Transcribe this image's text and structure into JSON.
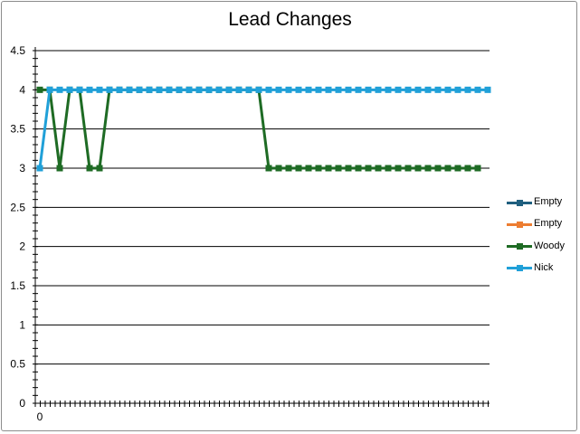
{
  "chart_data": {
    "type": "line",
    "title": "Lead Changes",
    "xlabel": "",
    "ylabel": "",
    "ylim": [
      0,
      4.5
    ],
    "yticks": [
      "0",
      "0.5",
      "1",
      "1.5",
      "2",
      "2.5",
      "3",
      "3.5",
      "4",
      "4.5"
    ],
    "x_tick_labels": [
      "0"
    ],
    "grid": true,
    "legend_position": "right",
    "series": [
      {
        "name": "Empty",
        "color": "#1f5f7f",
        "values": []
      },
      {
        "name": "Empty",
        "color": "#ed7d31",
        "values": []
      },
      {
        "name": "Woody",
        "color": "#1e6b24",
        "values": [
          4,
          4,
          3,
          4,
          4,
          3,
          3,
          4,
          4,
          4,
          4,
          4,
          4,
          4,
          4,
          4,
          4,
          4,
          4,
          4,
          4,
          4,
          4,
          3,
          3,
          3,
          3,
          3,
          3,
          3,
          3,
          3,
          3,
          3,
          3,
          3,
          3,
          3,
          3,
          3,
          3,
          3,
          3,
          3,
          3
        ]
      },
      {
        "name": "Nick",
        "color": "#20a0d8",
        "values": [
          3,
          4,
          4,
          4,
          4,
          4,
          4,
          4,
          4,
          4,
          4,
          4,
          4,
          4,
          4,
          4,
          4,
          4,
          4,
          4,
          4,
          4,
          4,
          4,
          4,
          4,
          4,
          4,
          4,
          4,
          4,
          4,
          4,
          4,
          4,
          4,
          4,
          4,
          4,
          4,
          4,
          4,
          4,
          4,
          4,
          4
        ]
      }
    ]
  }
}
